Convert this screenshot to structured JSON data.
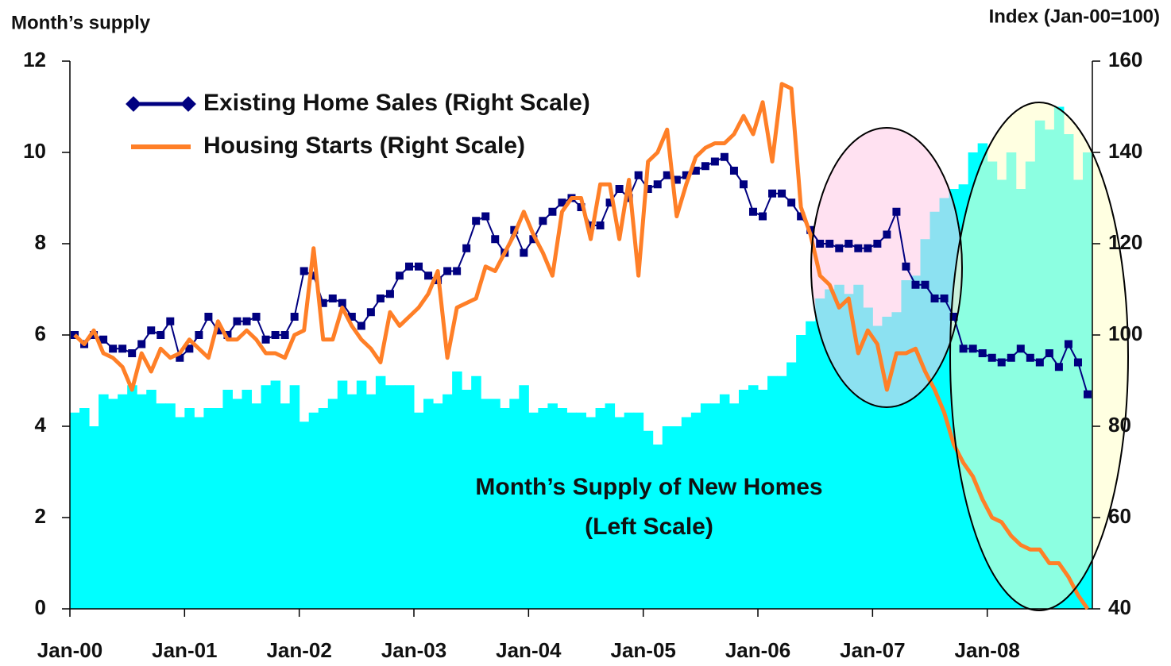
{
  "chart_data": {
    "type": "bar-line",
    "ylabel": "Month’s supply",
    "y2label": "Index (Jan-00=100)",
    "categories": [
      "Jan-00",
      null,
      null,
      null,
      null,
      null,
      null,
      null,
      null,
      null,
      null,
      null,
      "Jan-01",
      null,
      null,
      null,
      null,
      null,
      null,
      null,
      null,
      null,
      null,
      null,
      "Jan-02",
      null,
      null,
      null,
      null,
      null,
      null,
      null,
      null,
      null,
      null,
      null,
      "Jan-03",
      null,
      null,
      null,
      null,
      null,
      null,
      null,
      null,
      null,
      null,
      null,
      "Jan-04",
      null,
      null,
      null,
      null,
      null,
      null,
      null,
      null,
      null,
      null,
      null,
      "Jan-05",
      null,
      null,
      null,
      null,
      null,
      null,
      null,
      null,
      null,
      null,
      null,
      "Jan-06",
      null,
      null,
      null,
      null,
      null,
      null,
      null,
      null,
      null,
      null,
      null,
      "Jan-07",
      null,
      null,
      null,
      null,
      null,
      null,
      null,
      null,
      null,
      null,
      null,
      "Jan-08",
      null,
      null,
      null,
      null,
      null,
      null,
      null,
      null,
      null,
      null
    ],
    "ylim": [
      0,
      12
    ],
    "yticks": [
      0,
      2,
      4,
      6,
      8,
      10,
      12
    ],
    "y2lim": [
      40,
      160
    ],
    "y2ticks": [
      40,
      60,
      80,
      100,
      120,
      140,
      160
    ],
    "legend": "upper left",
    "annotation": "(Left Scale)",
    "series": [
      {
        "name": "Month’s Supply of New Homes",
        "kind": "bar",
        "axis": "y",
        "color": "#00ffff",
        "values": [
          4.3,
          4.4,
          4.0,
          4.7,
          4.6,
          4.7,
          4.9,
          4.7,
          4.8,
          4.5,
          4.5,
          4.2,
          4.4,
          4.2,
          4.4,
          4.4,
          4.8,
          4.6,
          4.8,
          4.5,
          4.9,
          5.0,
          4.5,
          4.9,
          4.1,
          4.3,
          4.4,
          4.6,
          5.0,
          4.7,
          5.0,
          4.7,
          5.1,
          4.9,
          4.9,
          4.9,
          4.3,
          4.6,
          4.5,
          4.7,
          5.2,
          4.8,
          5.1,
          4.6,
          4.6,
          4.4,
          4.6,
          4.9,
          4.3,
          4.4,
          4.5,
          4.4,
          4.3,
          4.3,
          4.2,
          4.4,
          4.5,
          4.2,
          4.3,
          4.3,
          3.9,
          3.6,
          4.0,
          4.0,
          4.2,
          4.3,
          4.5,
          4.5,
          4.7,
          4.5,
          4.8,
          4.9,
          4.8,
          5.1,
          5.1,
          5.4,
          6.0,
          6.3,
          6.8,
          7.0,
          7.1,
          6.9,
          7.1,
          6.6,
          6.2,
          6.4,
          6.5,
          7.2,
          7.3,
          8.1,
          8.7,
          9.0,
          9.2,
          9.3,
          10.0,
          10.2,
          9.8,
          9.4,
          10.0,
          9.2,
          9.8,
          10.7,
          10.5,
          11.0,
          10.4,
          9.4,
          10.0
        ]
      },
      {
        "name": "Existing Home Sales (Right Scale)",
        "kind": "line-marker",
        "axis": "y2",
        "color": "#000080",
        "values": [
          100,
          98,
          100,
          99,
          97,
          97,
          96,
          98,
          101,
          100,
          103,
          95,
          97,
          100,
          104,
          101,
          100,
          103,
          103,
          104,
          99,
          100,
          100,
          104,
          114,
          113,
          107,
          108,
          107,
          104,
          102,
          105,
          108,
          109,
          113,
          115,
          115,
          113,
          112,
          114,
          114,
          119,
          125,
          126,
          121,
          118,
          123,
          118,
          121,
          125,
          127,
          129,
          130,
          128,
          124,
          124,
          129,
          132,
          130,
          135,
          132,
          133,
          135,
          134,
          135,
          136,
          137,
          138,
          139,
          136,
          133,
          127,
          126,
          131,
          131,
          129,
          126,
          123,
          120,
          120,
          119,
          120,
          119,
          119,
          120,
          122,
          127,
          115,
          111,
          111,
          108,
          108,
          104,
          97,
          97,
          96,
          95,
          94,
          95,
          97,
          95,
          94,
          96,
          93,
          98,
          94,
          87
        ]
      },
      {
        "name": "Housing Starts (Right Scale)",
        "kind": "line",
        "axis": "y2",
        "color": "#ff7f27",
        "values": [
          100,
          98,
          101,
          96,
          95,
          93,
          88,
          96,
          92,
          97,
          95,
          96,
          99,
          97,
          95,
          103,
          99,
          99,
          101,
          99,
          96,
          96,
          95,
          100,
          101,
          119,
          99,
          99,
          106,
          102,
          99,
          97,
          94,
          105,
          102,
          104,
          106,
          109,
          114,
          95,
          106,
          107,
          108,
          115,
          114,
          118,
          122,
          127,
          122,
          118,
          113,
          127,
          130,
          130,
          121,
          133,
          133,
          121,
          134,
          113,
          138,
          140,
          145,
          126,
          133,
          139,
          141,
          142,
          142,
          144,
          148,
          144,
          151,
          138,
          155,
          154,
          128,
          122,
          113,
          111,
          106,
          108,
          96,
          101,
          98,
          88,
          96,
          96,
          97,
          92,
          88,
          83,
          76,
          72,
          69,
          64,
          60,
          59,
          56,
          54,
          53,
          53,
          50,
          50,
          47,
          43,
          40
        ]
      }
    ]
  }
}
